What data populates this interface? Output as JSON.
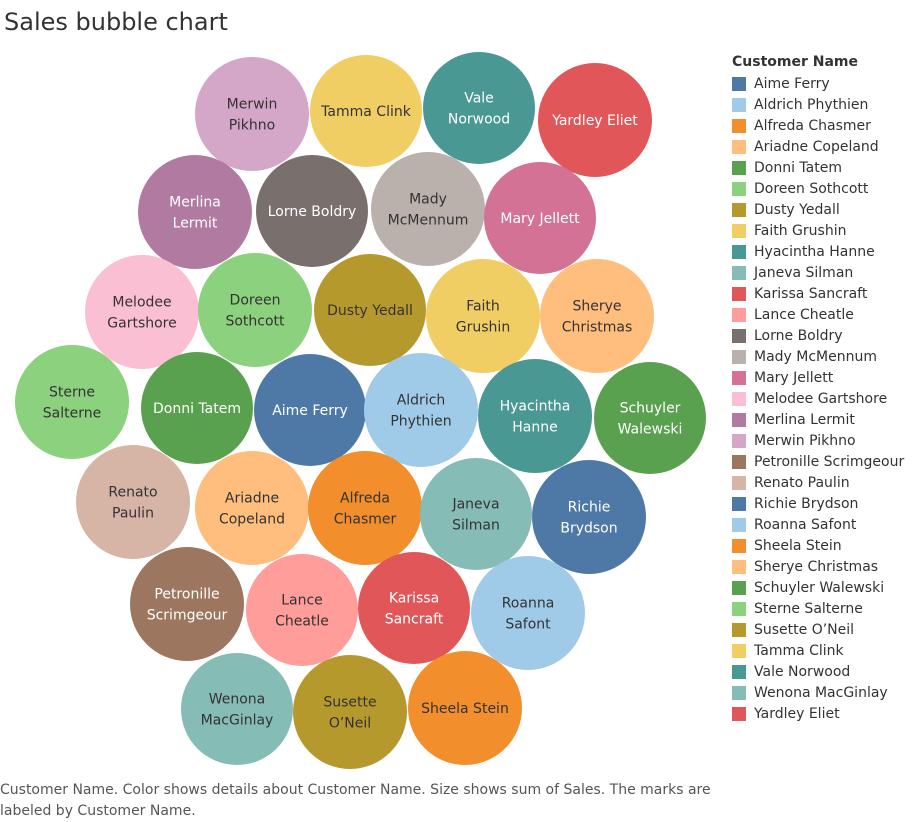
{
  "chart_data": {
    "type": "bubble",
    "title": "Sales bubble chart",
    "caption": "Customer Name.  Color shows details about Customer Name.  Size shows sum of Sales.  The marks are labeled by Customer Name.",
    "legend": {
      "title": "Customer Name",
      "placement": "right",
      "entries": [
        {
          "name": "Aime Ferry",
          "color": "#4e79a7"
        },
        {
          "name": "Aldrich Phythien",
          "color": "#a0cbe8"
        },
        {
          "name": "Alfreda Chasmer",
          "color": "#f28e2b"
        },
        {
          "name": "Ariadne Copeland",
          "color": "#ffbe7d"
        },
        {
          "name": "Donni Tatem",
          "color": "#59a14f"
        },
        {
          "name": "Doreen Sothcott",
          "color": "#8cd17d"
        },
        {
          "name": "Dusty Yedall",
          "color": "#b6992d"
        },
        {
          "name": "Faith Grushin",
          "color": "#f1ce63"
        },
        {
          "name": "Hyacintha Hanne",
          "color": "#499894"
        },
        {
          "name": "Janeva Silman",
          "color": "#86bcb6"
        },
        {
          "name": "Karissa Sancraft",
          "color": "#e15759"
        },
        {
          "name": "Lance Cheatle",
          "color": "#ff9d9a"
        },
        {
          "name": "Lorne Boldry",
          "color": "#79706e"
        },
        {
          "name": "Mady McMennum",
          "color": "#bab0ac"
        },
        {
          "name": "Mary Jellett",
          "color": "#d37295"
        },
        {
          "name": "Melodee Gartshore",
          "color": "#fabfd2"
        },
        {
          "name": "Merlina Lermit",
          "color": "#b07aa1"
        },
        {
          "name": "Merwin Pikhno",
          "color": "#d4a6c8"
        },
        {
          "name": "Petronille Scrimgeour",
          "color": "#9d7660"
        },
        {
          "name": "Renato Paulin",
          "color": "#d7b5a6"
        },
        {
          "name": "Richie Brydson",
          "color": "#4e79a7"
        },
        {
          "name": "Roanna Safont",
          "color": "#a0cbe8"
        },
        {
          "name": "Sheela Stein",
          "color": "#f28e2b"
        },
        {
          "name": "Sherye Christmas",
          "color": "#ffbe7d"
        },
        {
          "name": "Schuyler Walewski",
          "color": "#59a14f"
        },
        {
          "name": "Sterne Salterne",
          "color": "#8cd17d"
        },
        {
          "name": "Susette O’Neil",
          "color": "#b6992d"
        },
        {
          "name": "Tamma Clink",
          "color": "#f1ce63"
        },
        {
          "name": "Vale Norwood",
          "color": "#499894"
        },
        {
          "name": "Wenona MacGinlay",
          "color": "#86bcb6"
        },
        {
          "name": "Yardley Eliet",
          "color": "#e15759"
        }
      ]
    },
    "bubbles": [
      {
        "name": "Merwin Pikhno",
        "lines": [
          "Merwin",
          "Pikhno"
        ],
        "color": "#d4a6c8",
        "text_color": "#333333"
      },
      {
        "name": "Tamma Clink",
        "lines": [
          "Tamma Clink"
        ],
        "color": "#f1ce63",
        "text_color": "#333333"
      },
      {
        "name": "Vale Norwood",
        "lines": [
          "Vale",
          "Norwood"
        ],
        "color": "#499894",
        "text_color": "#ffffff"
      },
      {
        "name": "Yardley Eliet",
        "lines": [
          "Yardley Eliet"
        ],
        "color": "#e15759",
        "text_color": "#ffffff"
      },
      {
        "name": "Merlina Lermit",
        "lines": [
          "Merlina",
          "Lermit"
        ],
        "color": "#b07aa1",
        "text_color": "#ffffff"
      },
      {
        "name": "Lorne Boldry",
        "lines": [
          "Lorne Boldry"
        ],
        "color": "#79706e",
        "text_color": "#ffffff"
      },
      {
        "name": "Mady McMennum",
        "lines": [
          "Mady",
          "McMennum"
        ],
        "color": "#bab0ac",
        "text_color": "#333333"
      },
      {
        "name": "Mary Jellett",
        "lines": [
          "Mary Jellett"
        ],
        "color": "#d37295",
        "text_color": "#ffffff"
      },
      {
        "name": "Melodee Gartshore",
        "lines": [
          "Melodee",
          "Gartshore"
        ],
        "color": "#fabfd2",
        "text_color": "#333333"
      },
      {
        "name": "Doreen Sothcott",
        "lines": [
          "Doreen",
          "Sothcott"
        ],
        "color": "#8cd17d",
        "text_color": "#333333"
      },
      {
        "name": "Dusty Yedall",
        "lines": [
          "Dusty Yedall"
        ],
        "color": "#b6992d",
        "text_color": "#333333"
      },
      {
        "name": "Faith Grushin",
        "lines": [
          "Faith",
          "Grushin"
        ],
        "color": "#f1ce63",
        "text_color": "#333333"
      },
      {
        "name": "Sherye Christmas",
        "lines": [
          "Sherye",
          "Christmas"
        ],
        "color": "#ffbe7d",
        "text_color": "#333333"
      },
      {
        "name": "Sterne Salterne",
        "lines": [
          "Sterne",
          "Salterne"
        ],
        "color": "#8cd17d",
        "text_color": "#333333"
      },
      {
        "name": "Donni Tatem",
        "lines": [
          "Donni Tatem"
        ],
        "color": "#59a14f",
        "text_color": "#ffffff"
      },
      {
        "name": "Aime Ferry",
        "lines": [
          "Aime Ferry"
        ],
        "color": "#4e79a7",
        "text_color": "#ffffff"
      },
      {
        "name": "Aldrich Phythien",
        "lines": [
          "Aldrich",
          "Phythien"
        ],
        "color": "#a0cbe8",
        "text_color": "#333333"
      },
      {
        "name": "Hyacintha Hanne",
        "lines": [
          "Hyacintha",
          "Hanne"
        ],
        "color": "#499894",
        "text_color": "#ffffff"
      },
      {
        "name": "Schuyler Walewski",
        "lines": [
          "Schuyler",
          "Walewski"
        ],
        "color": "#59a14f",
        "text_color": "#ffffff"
      },
      {
        "name": "Renato Paulin",
        "lines": [
          "Renato",
          "Paulin"
        ],
        "color": "#d7b5a6",
        "text_color": "#333333"
      },
      {
        "name": "Ariadne Copeland",
        "lines": [
          "Ariadne",
          "Copeland"
        ],
        "color": "#ffbe7d",
        "text_color": "#333333"
      },
      {
        "name": "Alfreda Chasmer",
        "lines": [
          "Alfreda",
          "Chasmer"
        ],
        "color": "#f28e2b",
        "text_color": "#333333"
      },
      {
        "name": "Janeva Silman",
        "lines": [
          "Janeva",
          "Silman"
        ],
        "color": "#86bcb6",
        "text_color": "#333333"
      },
      {
        "name": "Richie Brydson",
        "lines": [
          "Richie",
          "Brydson"
        ],
        "color": "#4e79a7",
        "text_color": "#ffffff"
      },
      {
        "name": "Petronille Scrimgeour",
        "lines": [
          "Petronille",
          "Scrimgeour"
        ],
        "color": "#9d7660",
        "text_color": "#ffffff"
      },
      {
        "name": "Lance Cheatle",
        "lines": [
          "Lance",
          "Cheatle"
        ],
        "color": "#ff9d9a",
        "text_color": "#333333"
      },
      {
        "name": "Karissa Sancraft",
        "lines": [
          "Karissa",
          "Sancraft"
        ],
        "color": "#e15759",
        "text_color": "#ffffff"
      },
      {
        "name": "Roanna Safont",
        "lines": [
          "Roanna",
          "Safont"
        ],
        "color": "#a0cbe8",
        "text_color": "#333333"
      },
      {
        "name": "Wenona MacGinlay",
        "lines": [
          "Wenona",
          "MacGinlay"
        ],
        "color": "#86bcb6",
        "text_color": "#333333"
      },
      {
        "name": "Susette O’Neil",
        "lines": [
          "Susette",
          "O’Neil"
        ],
        "color": "#b6992d",
        "text_color": "#333333"
      },
      {
        "name": "Sheela Stein",
        "lines": [
          "Sheela Stein"
        ],
        "color": "#f28e2b",
        "text_color": "#333333"
      }
    ]
  }
}
